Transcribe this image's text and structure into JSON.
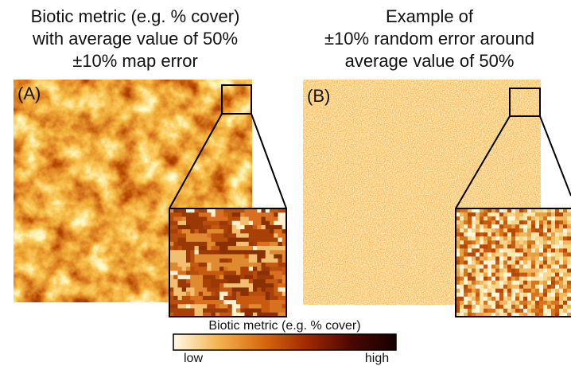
{
  "panels": [
    {
      "title": [
        "Biotic metric (e.g. % cover)",
        "with average value of 50%",
        "±10% map error"
      ],
      "label": "(A)"
    },
    {
      "title": [
        "Example of",
        "±10% random error around",
        "average value of 50%"
      ],
      "label": "(B)"
    }
  ],
  "colorbar": {
    "title": "Biotic metric (e.g. % cover)",
    "low": "low",
    "high": "high"
  }
}
